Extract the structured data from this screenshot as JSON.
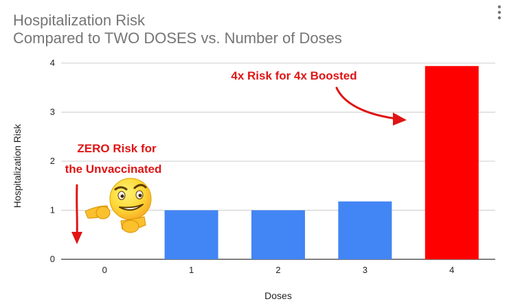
{
  "colors": {
    "bar_default": "#4285f4",
    "bar_highlight": "#ff0000",
    "annotation": "#e01414",
    "grid": "#cccccc",
    "title": "#757575"
  },
  "chart_data": {
    "type": "bar",
    "title_line1": "Hospitalization Risk",
    "title_line2": "Compared to TWO DOSES vs. Number of Doses",
    "xlabel": "Doses",
    "ylabel": "Hospitalization Risk",
    "categories": [
      "0",
      "1",
      "2",
      "3",
      "4"
    ],
    "values": [
      0,
      1.0,
      1.0,
      1.18,
      3.94
    ],
    "highlight_index": 4,
    "ylim": [
      0,
      4
    ],
    "yticks": [
      "0",
      "1",
      "2",
      "3",
      "4"
    ],
    "grid": true,
    "annotations": {
      "zero_risk_line1": "ZERO Risk for",
      "zero_risk_line2": "the Unvaccinated",
      "boosted": "4x Risk for 4x Boosted"
    }
  },
  "icons": {
    "menu": "more-vert-icon",
    "emoji": "smirking-pointing-emoji-icon"
  }
}
